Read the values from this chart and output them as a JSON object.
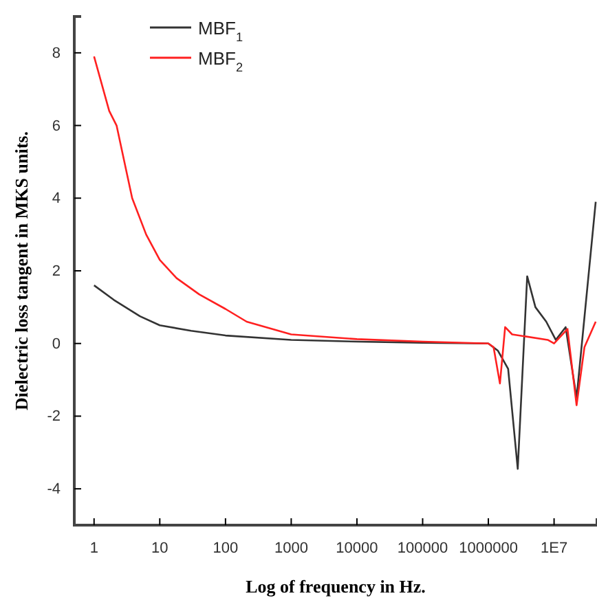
{
  "chart_data": {
    "type": "line",
    "xlabel": "Log of frequency in Hz.",
    "ylabel": "Dielectric loss tangent in MKS units.",
    "log": "x",
    "xlim": [
      0.5,
      45000000
    ],
    "ylim": [
      -5,
      9.0
    ],
    "xticks": [
      {
        "value": 1,
        "label": "1"
      },
      {
        "value": 10,
        "label": "10"
      },
      {
        "value": 100,
        "label": "100"
      },
      {
        "value": 1000,
        "label": "1000"
      },
      {
        "value": 10000,
        "label": "10000"
      },
      {
        "value": 100000,
        "label": "100000"
      },
      {
        "value": 1000000,
        "label": "1000000"
      },
      {
        "value": 10000000,
        "label": "1E7"
      }
    ],
    "yticks": [
      -4,
      -2,
      0,
      2,
      4,
      6,
      8
    ],
    "legend": "top left",
    "grid": false,
    "marker": "none",
    "line_style": "solid",
    "series": [
      {
        "name": "MBF$_{1}$",
        "color": "#333333",
        "x": [
          1,
          2,
          5,
          10,
          30,
          100,
          1000,
          10000,
          100000,
          1000000,
          1400000,
          2000000,
          2800000,
          3900000,
          5200000,
          7600000,
          10600000,
          15000000,
          22000000,
          43000000
        ],
        "values": [
          1.6,
          1.2,
          0.75,
          0.5,
          0.35,
          0.22,
          0.1,
          0.05,
          0.02,
          0,
          -0.2,
          -0.7,
          -3.45,
          1.85,
          1.0,
          0.6,
          0.1,
          0.45,
          -1.5,
          3.9
        ]
      },
      {
        "name": "MBF$_{2}$",
        "color": "#ff2020",
        "x": [
          1,
          1.7,
          2.2,
          3.8,
          6.2,
          10,
          18,
          40,
          100,
          210,
          1000,
          10000,
          100000,
          1000000,
          1200000,
          1500000,
          1800000,
          2300000,
          8000000,
          10000000,
          16000000,
          22000000,
          29000000,
          43000000
        ],
        "values": [
          7.9,
          6.4,
          6.0,
          4.0,
          3.0,
          2.3,
          1.8,
          1.35,
          0.95,
          0.6,
          0.25,
          0.12,
          0.05,
          0,
          -0.1,
          -1.1,
          0.45,
          0.25,
          0.1,
          0.0,
          0.4,
          -1.7,
          -0.1,
          0.6
        ]
      }
    ]
  }
}
